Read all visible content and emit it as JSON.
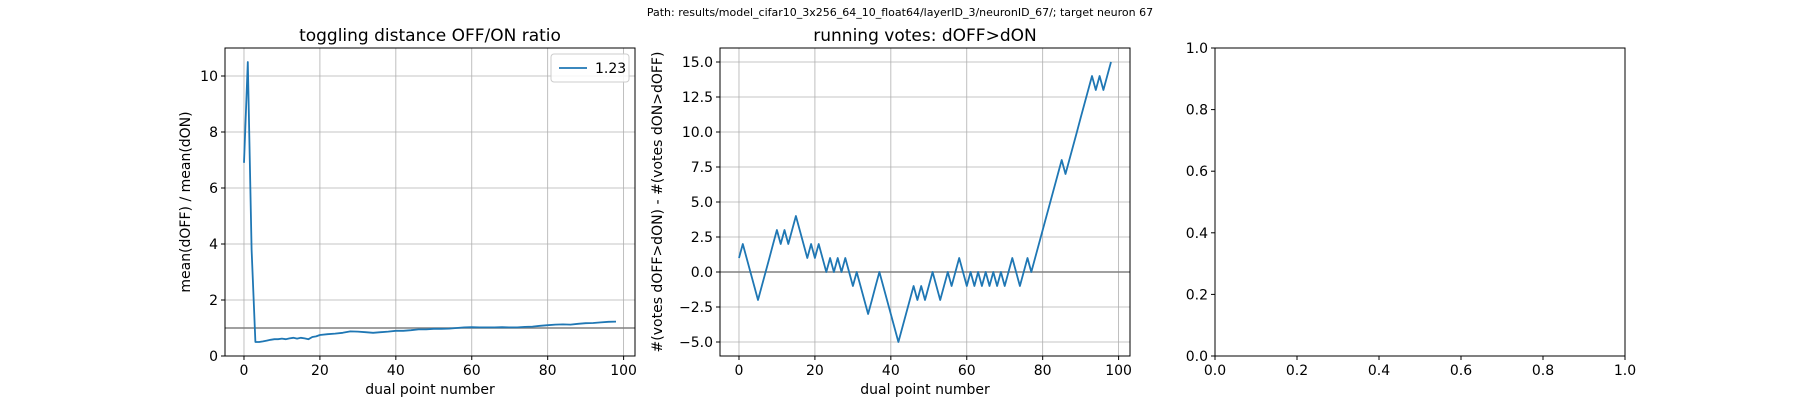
{
  "suptitle": "Path: results/model_cifar10_3x256_64_10_float64/layerID_3/neuronID_67/; target neuron 67",
  "colors": {
    "series": "#1f77b4",
    "refline": "#808080",
    "grid": "#b0b0b0",
    "axes": "#000000"
  },
  "chart_data": [
    {
      "type": "line",
      "title": "toggling distance OFF/ON ratio",
      "xlabel": "dual point number",
      "ylabel": "mean(dOFF) / mean(dON)",
      "xlim": [
        -5,
        103
      ],
      "ylim": [
        0,
        11
      ],
      "xticks": [
        0,
        20,
        40,
        60,
        80,
        100
      ],
      "xtick_labels": [
        "0",
        "20",
        "40",
        "60",
        "80",
        "100"
      ],
      "yticks": [
        0,
        2,
        4,
        6,
        8,
        10
      ],
      "ytick_labels": [
        "0",
        "2",
        "4",
        "6",
        "8",
        "10"
      ],
      "grid": true,
      "legend": {
        "position": "top-right",
        "entries": [
          "1.23"
        ]
      },
      "hline": 1,
      "series": [
        {
          "name": "1.23",
          "x": [
            0,
            1,
            2,
            3,
            4,
            5,
            6,
            7,
            8,
            9,
            10,
            11,
            12,
            13,
            14,
            15,
            16,
            17,
            18,
            19,
            20,
            22,
            24,
            26,
            28,
            30,
            32,
            34,
            36,
            38,
            40,
            42,
            44,
            46,
            48,
            50,
            52,
            54,
            56,
            58,
            60,
            62,
            64,
            66,
            68,
            70,
            72,
            74,
            76,
            78,
            80,
            82,
            84,
            86,
            88,
            90,
            92,
            94,
            96,
            98
          ],
          "y": [
            6.9,
            10.5,
            3.8,
            0.5,
            0.5,
            0.52,
            0.55,
            0.58,
            0.6,
            0.6,
            0.62,
            0.6,
            0.63,
            0.65,
            0.62,
            0.65,
            0.63,
            0.6,
            0.68,
            0.7,
            0.75,
            0.78,
            0.8,
            0.83,
            0.88,
            0.87,
            0.85,
            0.83,
            0.85,
            0.87,
            0.9,
            0.9,
            0.92,
            0.95,
            0.95,
            0.97,
            0.97,
            0.98,
            1.0,
            1.02,
            1.03,
            1.02,
            1.02,
            1.02,
            1.03,
            1.02,
            1.02,
            1.04,
            1.05,
            1.08,
            1.1,
            1.12,
            1.13,
            1.12,
            1.15,
            1.17,
            1.18,
            1.2,
            1.22,
            1.23
          ]
        }
      ]
    },
    {
      "type": "line",
      "title": "running votes: dOFF>dON",
      "xlabel": "dual point number",
      "ylabel": "#(votes dOFF>dON) - #(votes dON>dOFF)",
      "xlim": [
        -5,
        103
      ],
      "ylim": [
        -6,
        16
      ],
      "xticks": [
        0,
        20,
        40,
        60,
        80,
        100
      ],
      "xtick_labels": [
        "0",
        "20",
        "40",
        "60",
        "80",
        "100"
      ],
      "yticks": [
        -5,
        -2.5,
        0,
        2.5,
        5,
        7.5,
        10,
        12.5,
        15
      ],
      "ytick_labels": [
        "−5.0",
        "−2.5",
        "0.0",
        "2.5",
        "5.0",
        "7.5",
        "10.0",
        "12.5",
        "15.0"
      ],
      "grid": true,
      "hline": 0,
      "series": [
        {
          "x": [
            0,
            1,
            2,
            3,
            4,
            5,
            6,
            7,
            8,
            9,
            10,
            11,
            12,
            13,
            14,
            15,
            16,
            17,
            18,
            19,
            20,
            21,
            22,
            23,
            24,
            25,
            26,
            27,
            28,
            29,
            30,
            31,
            32,
            33,
            34,
            35,
            36,
            37,
            38,
            39,
            40,
            41,
            42,
            43,
            44,
            45,
            46,
            47,
            48,
            49,
            50,
            51,
            52,
            53,
            54,
            55,
            56,
            57,
            58,
            59,
            60,
            61,
            62,
            63,
            64,
            65,
            66,
            67,
            68,
            69,
            70,
            71,
            72,
            73,
            74,
            75,
            76,
            77,
            78,
            79,
            80,
            81,
            82,
            83,
            84,
            85,
            86,
            87,
            88,
            89,
            90,
            91,
            92,
            93,
            94,
            95,
            96,
            97,
            98
          ],
          "y": [
            1,
            2,
            1,
            0,
            -1,
            -2,
            -1,
            0,
            1,
            2,
            3,
            2,
            3,
            2,
            3,
            4,
            3,
            2,
            1,
            2,
            1,
            2,
            1,
            0,
            1,
            0,
            1,
            0,
            1,
            0,
            -1,
            0,
            -1,
            -2,
            -3,
            -2,
            -1,
            0,
            -1,
            -2,
            -3,
            -4,
            -5,
            -4,
            -3,
            -2,
            -1,
            -2,
            -1,
            -2,
            -1,
            0,
            -1,
            -2,
            -1,
            0,
            -1,
            0,
            1,
            0,
            -1,
            0,
            -1,
            0,
            -1,
            0,
            -1,
            0,
            -1,
            0,
            -1,
            0,
            1,
            0,
            -1,
            0,
            1,
            0,
            1,
            2,
            3,
            4,
            5,
            6,
            7,
            8,
            7,
            8,
            9,
            10,
            11,
            12,
            13,
            14,
            13,
            14,
            13,
            14,
            15
          ]
        }
      ]
    },
    {
      "type": "line",
      "title": "",
      "xlabel": "",
      "ylabel": "",
      "xlim": [
        0,
        1
      ],
      "ylim": [
        0,
        1
      ],
      "xticks": [
        0,
        0.2,
        0.4,
        0.6,
        0.8,
        1.0
      ],
      "xtick_labels": [
        "0.0",
        "0.2",
        "0.4",
        "0.6",
        "0.8",
        "1.0"
      ],
      "yticks": [
        0,
        0.2,
        0.4,
        0.6,
        0.8,
        1.0
      ],
      "ytick_labels": [
        "0.0",
        "0.2",
        "0.4",
        "0.6",
        "0.8",
        "1.0"
      ],
      "grid": false,
      "series": []
    }
  ]
}
